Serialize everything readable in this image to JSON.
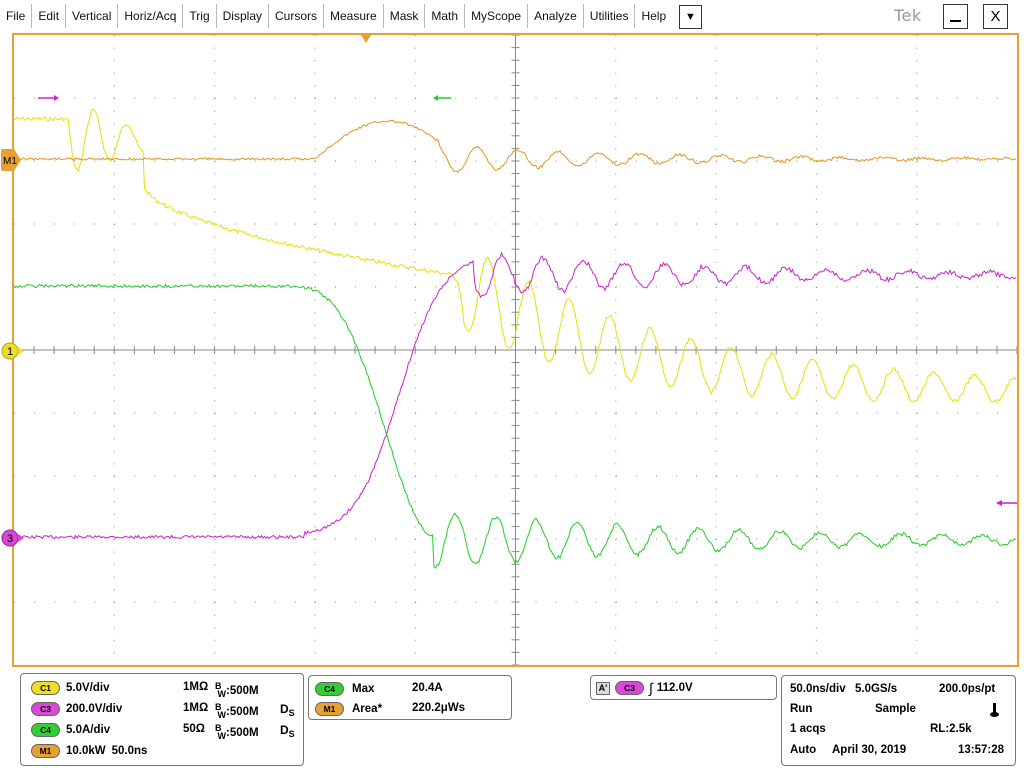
{
  "app": {
    "logo_text": "Tek"
  },
  "menu": {
    "items": [
      "File",
      "Edit",
      "Vertical",
      "Horiz/Acq",
      "Trig",
      "Display",
      "Cursors",
      "Measure",
      "Mask",
      "Math",
      "MyScope",
      "Analyze",
      "Utilities",
      "Help"
    ],
    "more_glyph": "▼",
    "minimize_label": "",
    "close_label": "X"
  },
  "markers": {
    "m1_label": "M1",
    "c1_label": "1",
    "c3_label": "3"
  },
  "colors": {
    "ch1": "#e6e000",
    "ch3": "#cc22cc",
    "ch4": "#22cc22",
    "math1": "#e39420",
    "frame": "#e8a033",
    "grid": "#8a8a8a"
  },
  "channels": {
    "c1": {
      "label": "C1",
      "scale": "5.0V/div",
      "impedance": "1MΩ",
      "bw_value": ":500M",
      "ds": ""
    },
    "c3": {
      "label": "C3",
      "scale": "200.0V/div",
      "impedance": "1MΩ",
      "bw_value": ":500M",
      "ds": "D"
    },
    "c4": {
      "label": "C4",
      "scale": "5.0A/div",
      "impedance": "50Ω",
      "bw_value": ":500M",
      "ds": "D"
    },
    "m1": {
      "label": "M1",
      "scale": "10.0kW",
      "timebase": "50.0ns"
    }
  },
  "bw": {
    "b": "B",
    "w": "W",
    "s": "S"
  },
  "measurements": [
    {
      "source": "C4",
      "name": "Max",
      "value": "20.4A"
    },
    {
      "source": "M1",
      "name": "Area*",
      "value": "220.2μWs"
    }
  ],
  "trigger": {
    "badge": "A'",
    "source": "C3",
    "slope_glyph": "∫",
    "level": "112.0V"
  },
  "acquisition": {
    "timebase": "50.0ns/div",
    "sample_rate": "5.0GS/s",
    "resolution": "200.0ps/pt",
    "state": "Run",
    "mode": "Sample",
    "acqs": "1 acqs",
    "record_length": "RL:2.5k",
    "trigger_mode": "Auto",
    "date": "April 30, 2019",
    "time": "13:57:28"
  }
}
